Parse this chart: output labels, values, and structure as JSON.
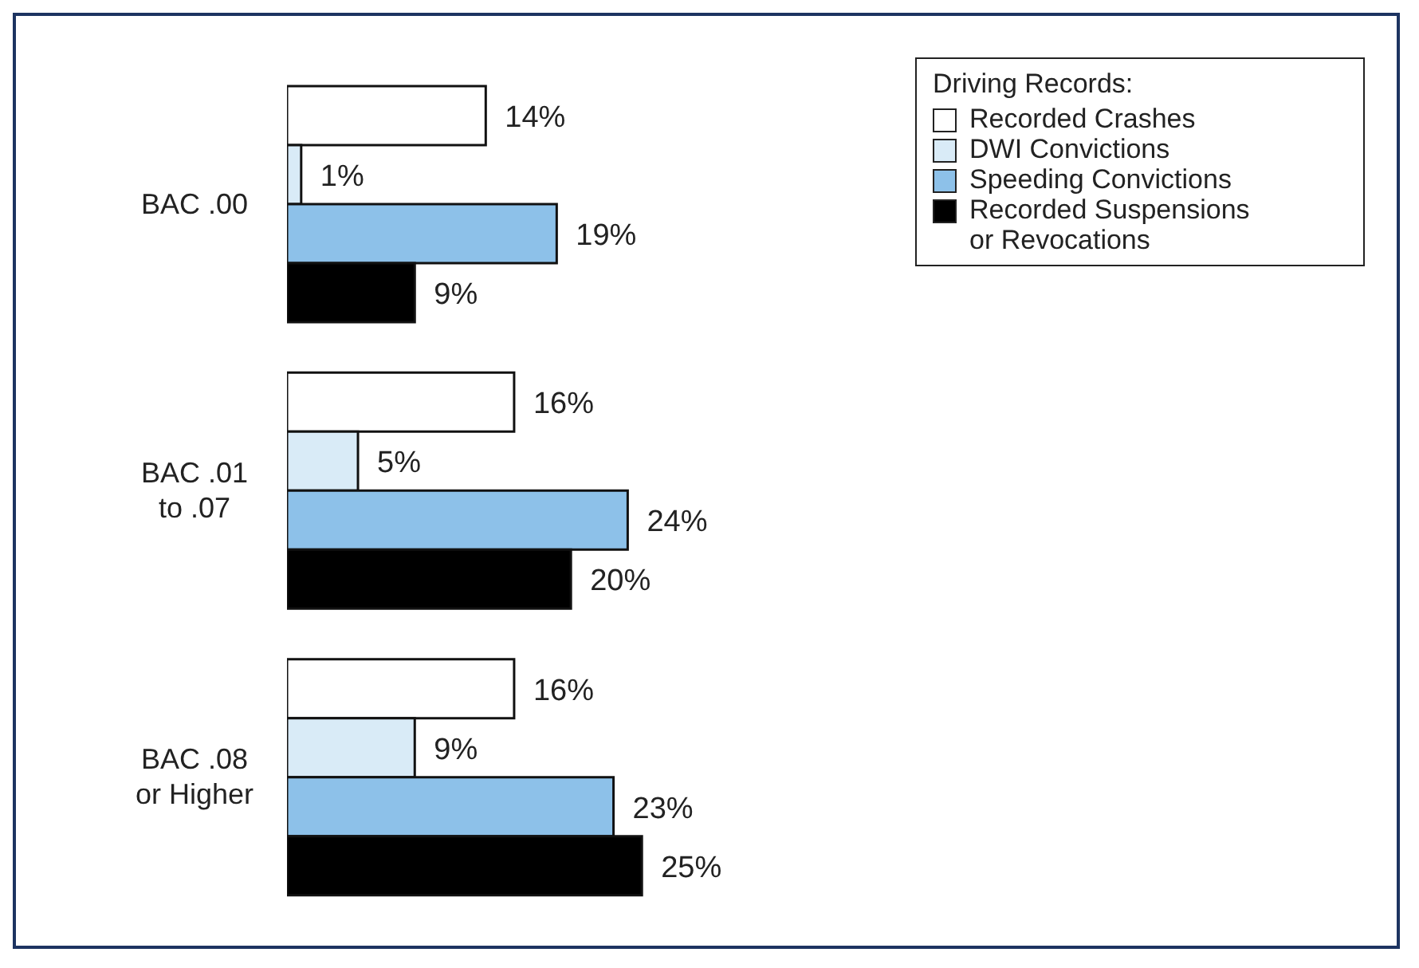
{
  "chart_data": {
    "type": "bar",
    "orientation": "horizontal",
    "legend_title": "Driving Records:",
    "legend": "top right",
    "categories": [
      "BAC .00",
      "BAC .01\nto .07",
      "BAC .08\nor Higher"
    ],
    "series": [
      {
        "name": "Recorded Crashes",
        "color": "#ffffff",
        "values": [
          14,
          16,
          16
        ],
        "value_labels": [
          "14%",
          "16%",
          "16%"
        ]
      },
      {
        "name": "DWI Convictions",
        "color": "#d9ebf7",
        "values": [
          1,
          5,
          9
        ],
        "value_labels": [
          "1%",
          "5%",
          "9%"
        ]
      },
      {
        "name": "Speeding Convictions",
        "color": "#8dc1e9",
        "values": [
          19,
          24,
          23
        ],
        "value_labels": [
          "19%",
          "24%",
          "23%"
        ]
      },
      {
        "name": "Recorded Suspensions\nor Revocations",
        "color": "#000000",
        "values": [
          9,
          20,
          25
        ],
        "value_labels": [
          "9%",
          "20%",
          "25%"
        ]
      }
    ]
  }
}
